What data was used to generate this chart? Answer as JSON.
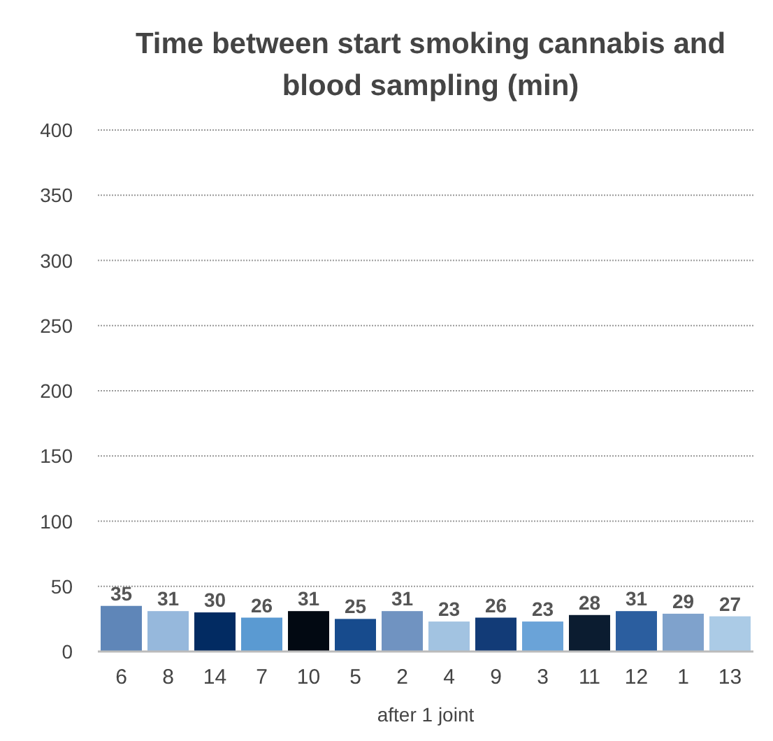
{
  "chart_data": {
    "type": "bar",
    "title": "Time between start smoking cannabis and blood sampling (min)",
    "xlabel": "after 1 joint",
    "categories": [
      "6",
      "8",
      "14",
      "7",
      "10",
      "5",
      "2",
      "4",
      "9",
      "3",
      "11",
      "12",
      "1",
      "13"
    ],
    "values": [
      35,
      31,
      30,
      26,
      31,
      25,
      31,
      23,
      26,
      23,
      28,
      31,
      29,
      27
    ],
    "colors": [
      "#5f86b8",
      "#96b8dc",
      "#022b62",
      "#5a9ad2",
      "#020912",
      "#174b8d",
      "#7093c1",
      "#a2c3e1",
      "#123b77",
      "#6aa3d8",
      "#0b1c30",
      "#2b5e9f",
      "#7fa2cc",
      "#abcbe6"
    ],
    "ylim": [
      0,
      400
    ],
    "yticks": [
      0,
      50,
      100,
      150,
      200,
      250,
      300,
      350,
      400
    ],
    "grid": "y",
    "data_labels": true
  }
}
